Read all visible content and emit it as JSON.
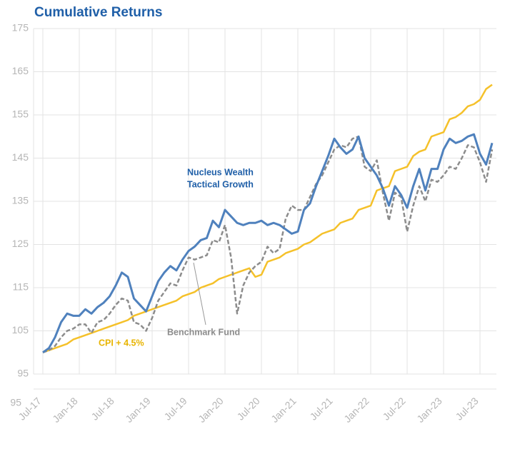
{
  "chart_data": {
    "type": "line",
    "title": "Cumulative Returns",
    "categories": [
      "Jul-17",
      null,
      null,
      null,
      null,
      null,
      "Jan-18",
      null,
      null,
      null,
      null,
      null,
      "Jul-18",
      null,
      null,
      null,
      null,
      null,
      "Jan-19",
      null,
      null,
      null,
      null,
      null,
      "Jul-19",
      null,
      null,
      null,
      null,
      null,
      "Jan-20",
      null,
      null,
      null,
      null,
      null,
      "Jul-20",
      null,
      null,
      null,
      null,
      null,
      "Jan-21",
      null,
      null,
      null,
      null,
      null,
      "Jul-21",
      null,
      null,
      null,
      null,
      null,
      "Jan-22",
      null,
      null,
      null,
      null,
      null,
      "Jul-22",
      null,
      null,
      null,
      null,
      null,
      "Jan-23",
      null,
      null,
      null,
      null,
      null,
      "Jul-23",
      null,
      null
    ],
    "series": [
      {
        "name": "Nucleus Wealth Tactical Growth",
        "color": "#4f81bd",
        "dash": false,
        "values": [
          100,
          101,
          103.5,
          107,
          109,
          108.5,
          108.5,
          110,
          109,
          110.5,
          111.5,
          113,
          115.5,
          118.5,
          117.5,
          112.5,
          111,
          109.5,
          113,
          116.5,
          118.5,
          120,
          119,
          121.5,
          123.5,
          124.5,
          126,
          126.5,
          130.5,
          129,
          133,
          131.5,
          130,
          129.5,
          130,
          130,
          130.5,
          129.5,
          130,
          129.5,
          128.5,
          127.5,
          128,
          133,
          134.5,
          138.5,
          142,
          145.5,
          149.5,
          147.5,
          146,
          147,
          150,
          145,
          143,
          141,
          138,
          134,
          138.5,
          136.5,
          133.5,
          138.5,
          142.5,
          137.5,
          142.5,
          142.5,
          147,
          149.5,
          148.5,
          149,
          150,
          150.5,
          146,
          143.5,
          148.5
        ]
      },
      {
        "name": "Benchmark Fund",
        "color": "#8c8c8c",
        "dash": true,
        "values": [
          100,
          100.5,
          101.5,
          103.5,
          105,
          105.5,
          106.5,
          106.5,
          104.5,
          107,
          107.5,
          109,
          111,
          112.5,
          112,
          107,
          106.5,
          105,
          108,
          112,
          114,
          116,
          115.5,
          119,
          122,
          121.5,
          122,
          122.5,
          126,
          125.5,
          129.5,
          122,
          109,
          115.5,
          118.5,
          120,
          121,
          124.5,
          123,
          124,
          131,
          134,
          133,
          133,
          136,
          139,
          141,
          144,
          147,
          148,
          147.5,
          149.5,
          150,
          143,
          142,
          144.5,
          137,
          130.5,
          137,
          136,
          128,
          134,
          138.5,
          135,
          140,
          139.5,
          141,
          143,
          142.5,
          145,
          148,
          147.5,
          144,
          139.5,
          147
        ]
      },
      {
        "name": "CPI + 4.5%",
        "color": "#f5c12a",
        "dash": false,
        "values": [
          100,
          100.5,
          101,
          101.5,
          102,
          103,
          103.5,
          104,
          104.5,
          105,
          105.5,
          106,
          106.5,
          107,
          107.5,
          108.5,
          109,
          109.5,
          110,
          110.5,
          111,
          111.5,
          112,
          113,
          113.5,
          114,
          115,
          115.5,
          116,
          117,
          117.5,
          118,
          118.5,
          119,
          119.5,
          117.5,
          118,
          121,
          121.5,
          122,
          123,
          123.5,
          124,
          125,
          125.5,
          126.5,
          127.5,
          128,
          128.5,
          130,
          130.5,
          131,
          133,
          133.5,
          134,
          137.5,
          138,
          138.5,
          142,
          142.5,
          143,
          145.5,
          146.5,
          147,
          150,
          150.5,
          151,
          154,
          154.5,
          155.5,
          157,
          157.5,
          158.5,
          161,
          162
        ]
      }
    ],
    "ylim": [
      95,
      175
    ],
    "yticks": [
      95,
      105,
      115,
      125,
      135,
      145,
      155,
      165,
      175
    ],
    "x_axis_corner_label": "95",
    "grid": true,
    "annotations": [
      {
        "lines": [
          "Nucleus Wealth",
          "Tactical Growth"
        ],
        "color": "#1f5fa8"
      },
      {
        "lines": [
          "Benchmark Fund"
        ],
        "color": "#8c8c8c"
      },
      {
        "lines": [
          "CPI + 4.5%"
        ],
        "color": "#e8b400"
      }
    ]
  }
}
